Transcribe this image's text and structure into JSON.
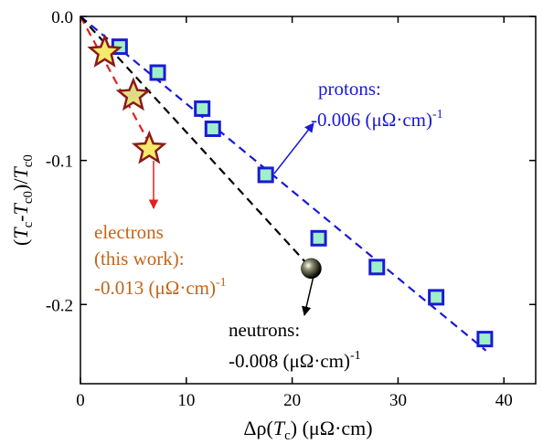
{
  "chart_data": {
    "type": "scatter",
    "title": "",
    "xlabel": "Δρ(Tc) (μΩ·cm)",
    "ylabel": "(Tc-Tc0)/Tc0",
    "xlim": [
      0,
      43
    ],
    "ylim": [
      -0.255,
      0.0
    ],
    "xticks": [
      0,
      10,
      20,
      30,
      40
    ],
    "yticks": [
      0.0,
      -0.1,
      -0.2
    ],
    "ytick_labels": [
      "0.0",
      "-0.1",
      "-0.2"
    ],
    "series": [
      {
        "name": "protons",
        "marker": "square",
        "color": "#1a1ad6",
        "fill": "#9ff0c8",
        "points": [
          [
            3.7,
            -0.021
          ],
          [
            7.3,
            -0.039
          ],
          [
            11.5,
            -0.064
          ],
          [
            12.5,
            -0.078
          ],
          [
            17.5,
            -0.11
          ],
          [
            22.5,
            -0.154
          ],
          [
            28.0,
            -0.174
          ],
          [
            33.6,
            -0.195
          ],
          [
            38.2,
            -0.224
          ]
        ],
        "fit": {
          "style": "dashed",
          "color": "#1a1ad6",
          "from": [
            0.0,
            0.0
          ],
          "to": [
            38.3,
            -0.232
          ]
        }
      },
      {
        "name": "electrons",
        "marker": "star",
        "color": "#8b1a1a",
        "fill": "#f5ea6a",
        "points": [
          [
            2.3,
            -0.025
          ],
          [
            5.0,
            -0.055
          ],
          [
            6.5,
            -0.092
          ]
        ],
        "fit": {
          "style": "dashed",
          "color": "#e02020",
          "from": [
            0.0,
            0.0
          ],
          "to": [
            6.8,
            -0.092
          ]
        }
      },
      {
        "name": "neutrons",
        "marker": "sphere",
        "color": "#000000",
        "fill": "#000000",
        "points": [
          [
            21.8,
            -0.175
          ]
        ],
        "fit": {
          "style": "dashed",
          "color": "#000000",
          "from": [
            0.0,
            0.0
          ],
          "to": [
            21.8,
            -0.175
          ]
        }
      }
    ],
    "annotations": [
      {
        "id": "protons",
        "color": "#1a1ad6",
        "lines": [
          "protons:",
          "-0.006 (μΩ·cm)"
        ],
        "superscript": "-1"
      },
      {
        "id": "electrons",
        "color": "#c0651a",
        "lines": [
          "electrons",
          "(this work):",
          "-0.013  (μΩ·cm)"
        ],
        "superscript": "-1"
      },
      {
        "id": "neutrons",
        "color": "#000000",
        "lines": [
          "neutrons:",
          "-0.008  (μΩ·cm)"
        ],
        "superscript": "-1"
      }
    ]
  }
}
